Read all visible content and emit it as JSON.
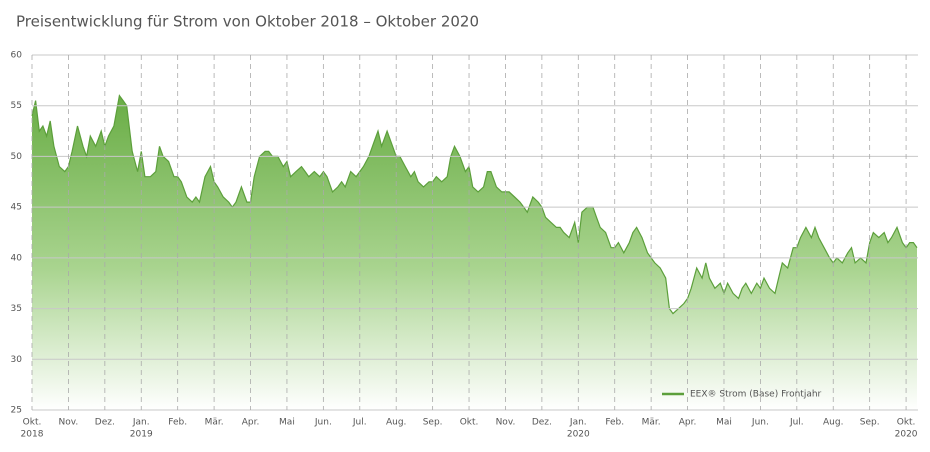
{
  "chart_data": {
    "type": "area",
    "title": "Preisentwicklung für Strom von Oktober 2018 – Oktober 2020",
    "legend": "lower right",
    "grid": true,
    "series": [
      {
        "name": "EEX® Strom (Base) Frontjahr",
        "color": "#5c9f3b",
        "x": [
          0,
          0.1,
          0.2,
          0.3,
          0.4,
          0.5,
          0.6,
          0.75,
          0.9,
          1,
          1.1,
          1.25,
          1.4,
          1.5,
          1.6,
          1.75,
          1.9,
          2,
          2.1,
          2.25,
          2.4,
          2.5,
          2.6,
          2.75,
          2.9,
          3,
          3.1,
          3.25,
          3.4,
          3.5,
          3.6,
          3.75,
          3.9,
          4,
          4.1,
          4.25,
          4.4,
          4.5,
          4.6,
          4.75,
          4.9,
          5,
          5.1,
          5.25,
          5.4,
          5.5,
          5.6,
          5.75,
          5.9,
          6,
          6.1,
          6.25,
          6.4,
          6.5,
          6.6,
          6.75,
          6.9,
          7,
          7.1,
          7.25,
          7.4,
          7.5,
          7.6,
          7.75,
          7.9,
          8,
          8.1,
          8.25,
          8.4,
          8.5,
          8.6,
          8.75,
          8.9,
          9,
          9.1,
          9.25,
          9.4,
          9.5,
          9.6,
          9.75,
          9.9,
          10,
          10.1,
          10.25,
          10.4,
          10.5,
          10.6,
          10.75,
          10.9,
          11,
          11.1,
          11.25,
          11.4,
          11.5,
          11.6,
          11.75,
          11.9,
          12,
          12.1,
          12.25,
          12.4,
          12.5,
          12.6,
          12.75,
          12.9,
          13,
          13.1,
          13.25,
          13.4,
          13.5,
          13.6,
          13.75,
          13.9,
          14,
          14.1,
          14.25,
          14.4,
          14.5,
          14.6,
          14.75,
          14.9,
          15,
          15.1,
          15.25,
          15.4,
          15.5,
          15.6,
          15.75,
          15.9,
          16,
          16.1,
          16.25,
          16.4,
          16.5,
          16.6,
          16.75,
          16.9,
          17,
          17.1,
          17.25,
          17.4,
          17.5,
          17.6,
          17.75,
          17.9,
          18,
          18.1,
          18.25,
          18.4,
          18.5,
          18.6,
          18.75,
          18.9,
          19,
          19.1,
          19.25,
          19.4,
          19.5,
          19.6,
          19.75,
          19.9,
          20,
          20.1,
          20.25,
          20.4,
          20.5,
          20.6,
          20.75,
          20.9,
          21,
          21.1,
          21.25,
          21.4,
          21.5,
          21.6,
          21.75,
          21.9,
          22,
          22.1,
          22.25,
          22.4,
          22.5,
          22.6,
          22.75,
          22.9,
          23,
          23.1,
          23.25,
          23.4,
          23.5,
          23.6,
          23.75,
          23.9,
          24,
          24.1,
          24.2,
          24.3
        ],
        "values": [
          54,
          55.5,
          52.5,
          53,
          52,
          53.5,
          51,
          49,
          48.5,
          49,
          50.5,
          53,
          51,
          50,
          52,
          51,
          52.5,
          51,
          52,
          53,
          56,
          55.5,
          55,
          50.5,
          48.5,
          50.5,
          48,
          48,
          48.5,
          51,
          50,
          49.5,
          48,
          48,
          47.5,
          46,
          45.5,
          46,
          45.5,
          48,
          49,
          47.5,
          47,
          46,
          45.5,
          45,
          45.5,
          47,
          45.5,
          45.5,
          48,
          50,
          50.5,
          50.5,
          50,
          50,
          49,
          49.5,
          48,
          48.5,
          49,
          48.5,
          48,
          48.5,
          48,
          48.5,
          48,
          46.5,
          47,
          47.5,
          47,
          48.5,
          48,
          48.5,
          49,
          50,
          51.5,
          52.5,
          51,
          52.5,
          51,
          50,
          50,
          49,
          48,
          48.5,
          47.5,
          47,
          47.5,
          47.5,
          48,
          47.5,
          48,
          50,
          51,
          50,
          48.5,
          49,
          47,
          46.5,
          47,
          48.5,
          48.5,
          47,
          46.5,
          46.5,
          46.5,
          46,
          45.5,
          45,
          44.5,
          46,
          45.5,
          45,
          44,
          43.5,
          43,
          43,
          42.5,
          42,
          43.5,
          41.5,
          44.5,
          45,
          45,
          44,
          43,
          42.5,
          41,
          41,
          41.5,
          40.5,
          41.5,
          42.5,
          43,
          42,
          40.5,
          40,
          39.5,
          39,
          38,
          35,
          34.5,
          35,
          35.5,
          36,
          37,
          39,
          38,
          39.5,
          38,
          37,
          37.5,
          36.5,
          37.5,
          36.5,
          36,
          37,
          37.5,
          36.5,
          37.5,
          37,
          38,
          37,
          36.5,
          38,
          39.5,
          39,
          41,
          41,
          42,
          43,
          42,
          43,
          42,
          41,
          40,
          39.5,
          40,
          39.5,
          40.5,
          41,
          39.5,
          40,
          39.5,
          41.5,
          42.5,
          42,
          42.5,
          41.5,
          42,
          43,
          41.5,
          41,
          41.5,
          41.5,
          41
        ]
      }
    ],
    "xlim": [
      0,
      24.3
    ],
    "xticks": [
      {
        "value": 0,
        "label": "Okt."
      },
      {
        "value": 1,
        "label": "Nov."
      },
      {
        "value": 2,
        "label": "Dez."
      },
      {
        "value": 3,
        "label": "Jan."
      },
      {
        "value": 4,
        "label": "Feb."
      },
      {
        "value": 5,
        "label": "Mär."
      },
      {
        "value": 6,
        "label": "Apr."
      },
      {
        "value": 7,
        "label": "Mai"
      },
      {
        "value": 8,
        "label": "Jun."
      },
      {
        "value": 9,
        "label": "Jul."
      },
      {
        "value": 10,
        "label": "Aug."
      },
      {
        "value": 11,
        "label": "Sep."
      },
      {
        "value": 12,
        "label": "Okt."
      },
      {
        "value": 13,
        "label": "Nov."
      },
      {
        "value": 14,
        "label": "Dez."
      },
      {
        "value": 15,
        "label": "Jan."
      },
      {
        "value": 16,
        "label": "Feb."
      },
      {
        "value": 17,
        "label": "Mär."
      },
      {
        "value": 18,
        "label": "Apr."
      },
      {
        "value": 19,
        "label": "Mai"
      },
      {
        "value": 20,
        "label": "Jun."
      },
      {
        "value": 21,
        "label": "Jul."
      },
      {
        "value": 22,
        "label": "Aug."
      },
      {
        "value": 23,
        "label": "Sep."
      },
      {
        "value": 24,
        "label": "Okt."
      }
    ],
    "year_labels": [
      {
        "value": 0,
        "label": "2018"
      },
      {
        "value": 3,
        "label": "2019"
      },
      {
        "value": 15,
        "label": "2020"
      },
      {
        "value": 24,
        "label": "2020"
      }
    ],
    "ylim": [
      25,
      60
    ],
    "yticks": [
      25,
      30,
      35,
      40,
      45,
      50,
      55,
      60
    ]
  }
}
